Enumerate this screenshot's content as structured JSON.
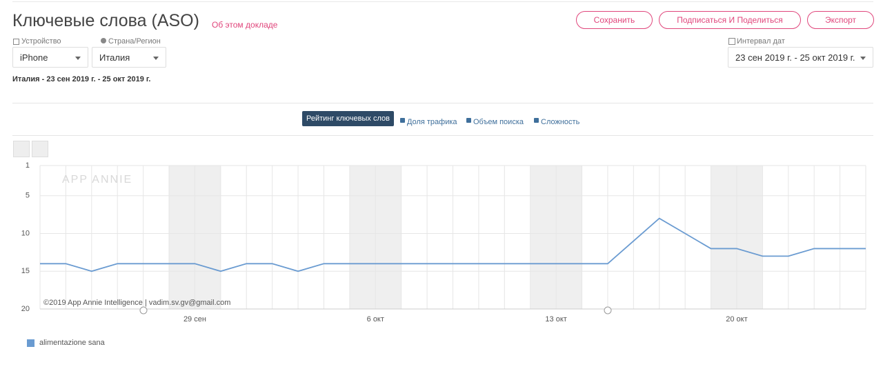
{
  "header": {
    "title": "Ключевые слова (ASO)",
    "about_link": "Об этом докладе",
    "buttons": [
      "Сохранить",
      "Подписаться И Поделиться",
      "Экспорт"
    ]
  },
  "filters": {
    "device_label": "Устройство",
    "device_value": "iPhone",
    "country_label": "Страна/Регион",
    "country_value": "Италия",
    "date_label": "Интервал дат",
    "date_value": "23 сен 2019 г. - 25 окт 2019 г."
  },
  "summary": "Италия - 23 сен 2019 г. - 25 окт 2019 г.",
  "tabs": [
    "Рейтинг ключевых слов",
    "Доля трафика",
    "Объем поиска",
    "Сложность"
  ],
  "chart_data": {
    "type": "line",
    "watermark": "APP ANNIE",
    "credit": "©2019 App Annie Intelligence | vadim.sv.gv@gmail.com",
    "categories": [
      null,
      null,
      null,
      null,
      null,
      null,
      "29 сен",
      null,
      null,
      null,
      null,
      null,
      null,
      "6 окт",
      null,
      null,
      null,
      null,
      null,
      null,
      "13 окт",
      null,
      null,
      null,
      null,
      null,
      null,
      "20 окт",
      null,
      null,
      null,
      null,
      null
    ],
    "series": [
      {
        "name": "alimentazione sana",
        "color": "#6a9bd1",
        "values": [
          14,
          14,
          15,
          14,
          14,
          14,
          14,
          15,
          14,
          14,
          15,
          14,
          14,
          14,
          14,
          14,
          14,
          14,
          14,
          14,
          14,
          14,
          14,
          11,
          8,
          10,
          12,
          12,
          13,
          13,
          12,
          12,
          12
        ]
      }
    ],
    "ylim": [
      20,
      1
    ],
    "yticks": [
      1,
      5,
      10,
      15,
      20
    ],
    "grid": true
  }
}
